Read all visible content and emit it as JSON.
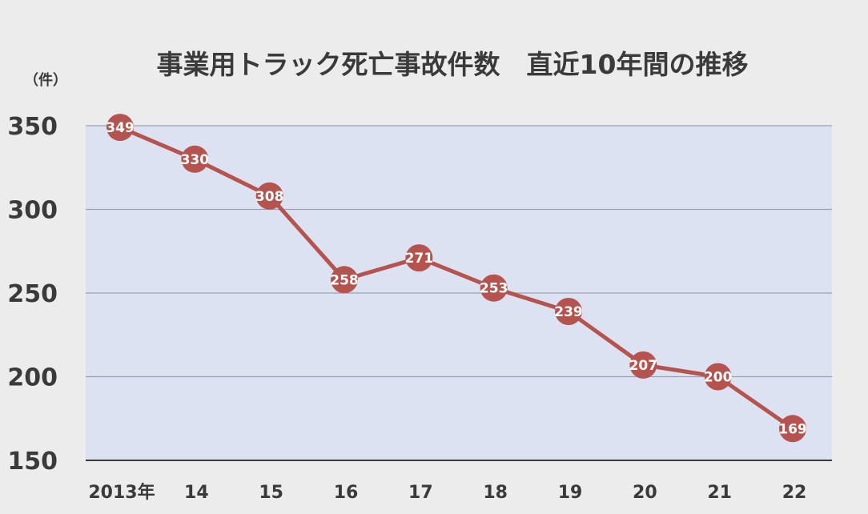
{
  "chart_data": {
    "type": "line",
    "title": "事業用トラック死亡事故件数　直近10年間の推移",
    "unit_label": "（件）",
    "categories": [
      "2013年",
      "14",
      "15",
      "16",
      "17",
      "18",
      "19",
      "20",
      "21",
      "22"
    ],
    "values": [
      349,
      330,
      308,
      258,
      271,
      253,
      239,
      207,
      200,
      169
    ],
    "ylim": [
      150,
      350
    ],
    "yticks": [
      350,
      300,
      250,
      200,
      150
    ],
    "grid": true,
    "legend": "none",
    "colors": {
      "line": "#b5544f",
      "marker": "#b5544f",
      "plot_bg": "#dde2f3",
      "grid": "#9aa0b4",
      "axis": "#3a3a3a"
    }
  }
}
